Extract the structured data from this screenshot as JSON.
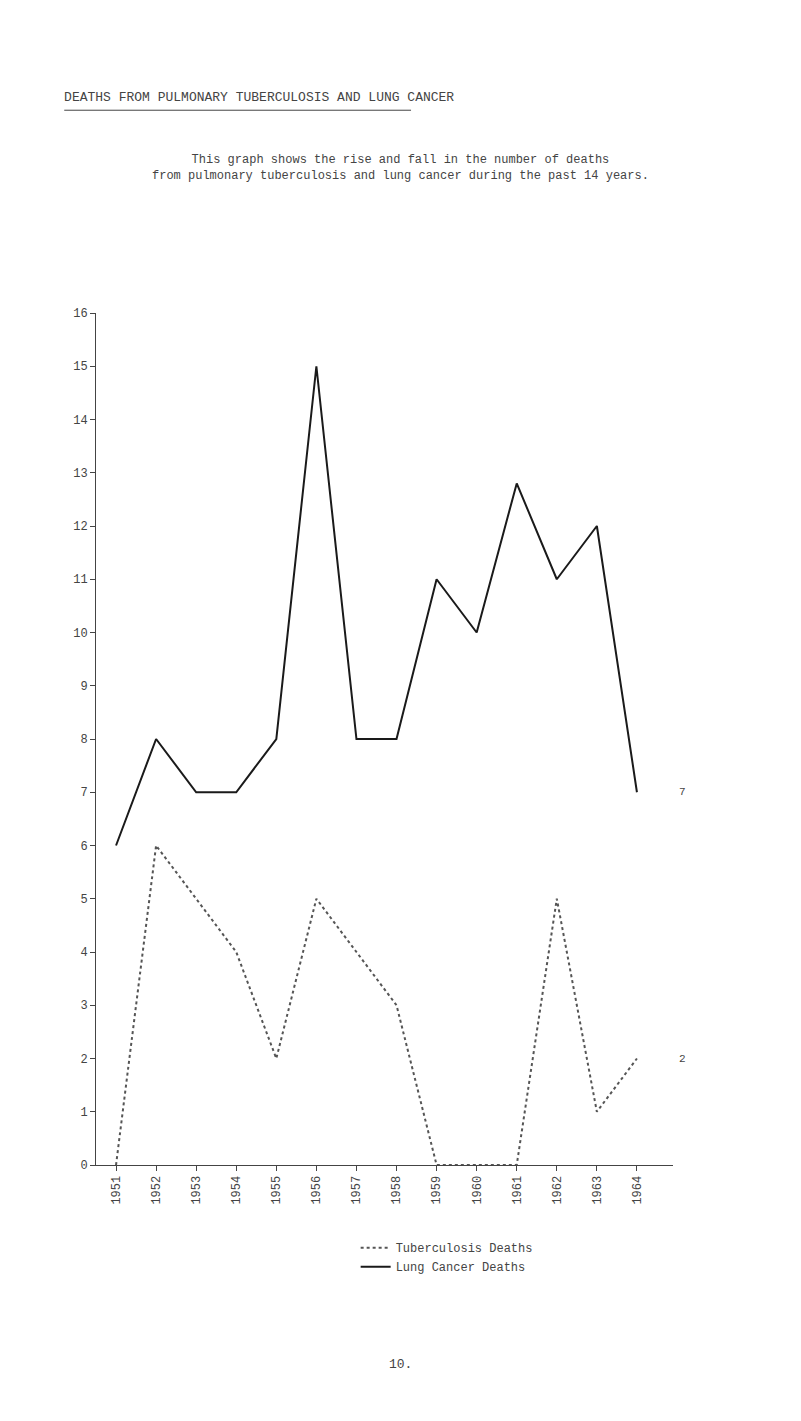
{
  "chart_data": {
    "type": "line",
    "title": "DEATHS FROM PULMONARY TUBERCULOSIS AND LUNG CANCER",
    "subtitle": "This graph shows the rise and fall in the number of deaths\nfrom pulmonary tuberculosis and lung cancer during the past 14 years.",
    "x": [
      1951,
      1952,
      1953,
      1954,
      1955,
      1956,
      1957,
      1958,
      1959,
      1960,
      1961,
      1962,
      1963,
      1964
    ],
    "series": [
      {
        "name": "Lung Cancer Deaths",
        "color": "#1a1a1a",
        "line_style": "solid",
        "values": [
          6,
          8,
          7,
          7,
          8,
          15,
          8,
          8,
          11,
          10,
          12.8,
          11,
          12,
          7
        ]
      },
      {
        "name": "Tuberculosis Deaths",
        "color": "#555555",
        "line_style": "dotted",
        "values": [
          0,
          6,
          5,
          4,
          2,
          5,
          4,
          3,
          0,
          0,
          0,
          5,
          1,
          2
        ]
      }
    ],
    "xlim": [
      1950.5,
      1964.9
    ],
    "xticks": [
      1951,
      1952,
      1953,
      1954,
      1955,
      1956,
      1957,
      1958,
      1959,
      1960,
      1961,
      1962,
      1963,
      1964
    ],
    "ylim": [
      0,
      16
    ],
    "yticks": [
      0,
      1,
      2,
      3,
      4,
      5,
      6,
      7,
      8,
      9,
      10,
      11,
      12,
      13,
      14,
      15,
      16
    ],
    "annotations": [
      {
        "text": "7",
        "y": 7
      },
      {
        "text": "2",
        "y": 2
      }
    ],
    "page_number": "10.",
    "grid": false,
    "legend": "bottom"
  }
}
